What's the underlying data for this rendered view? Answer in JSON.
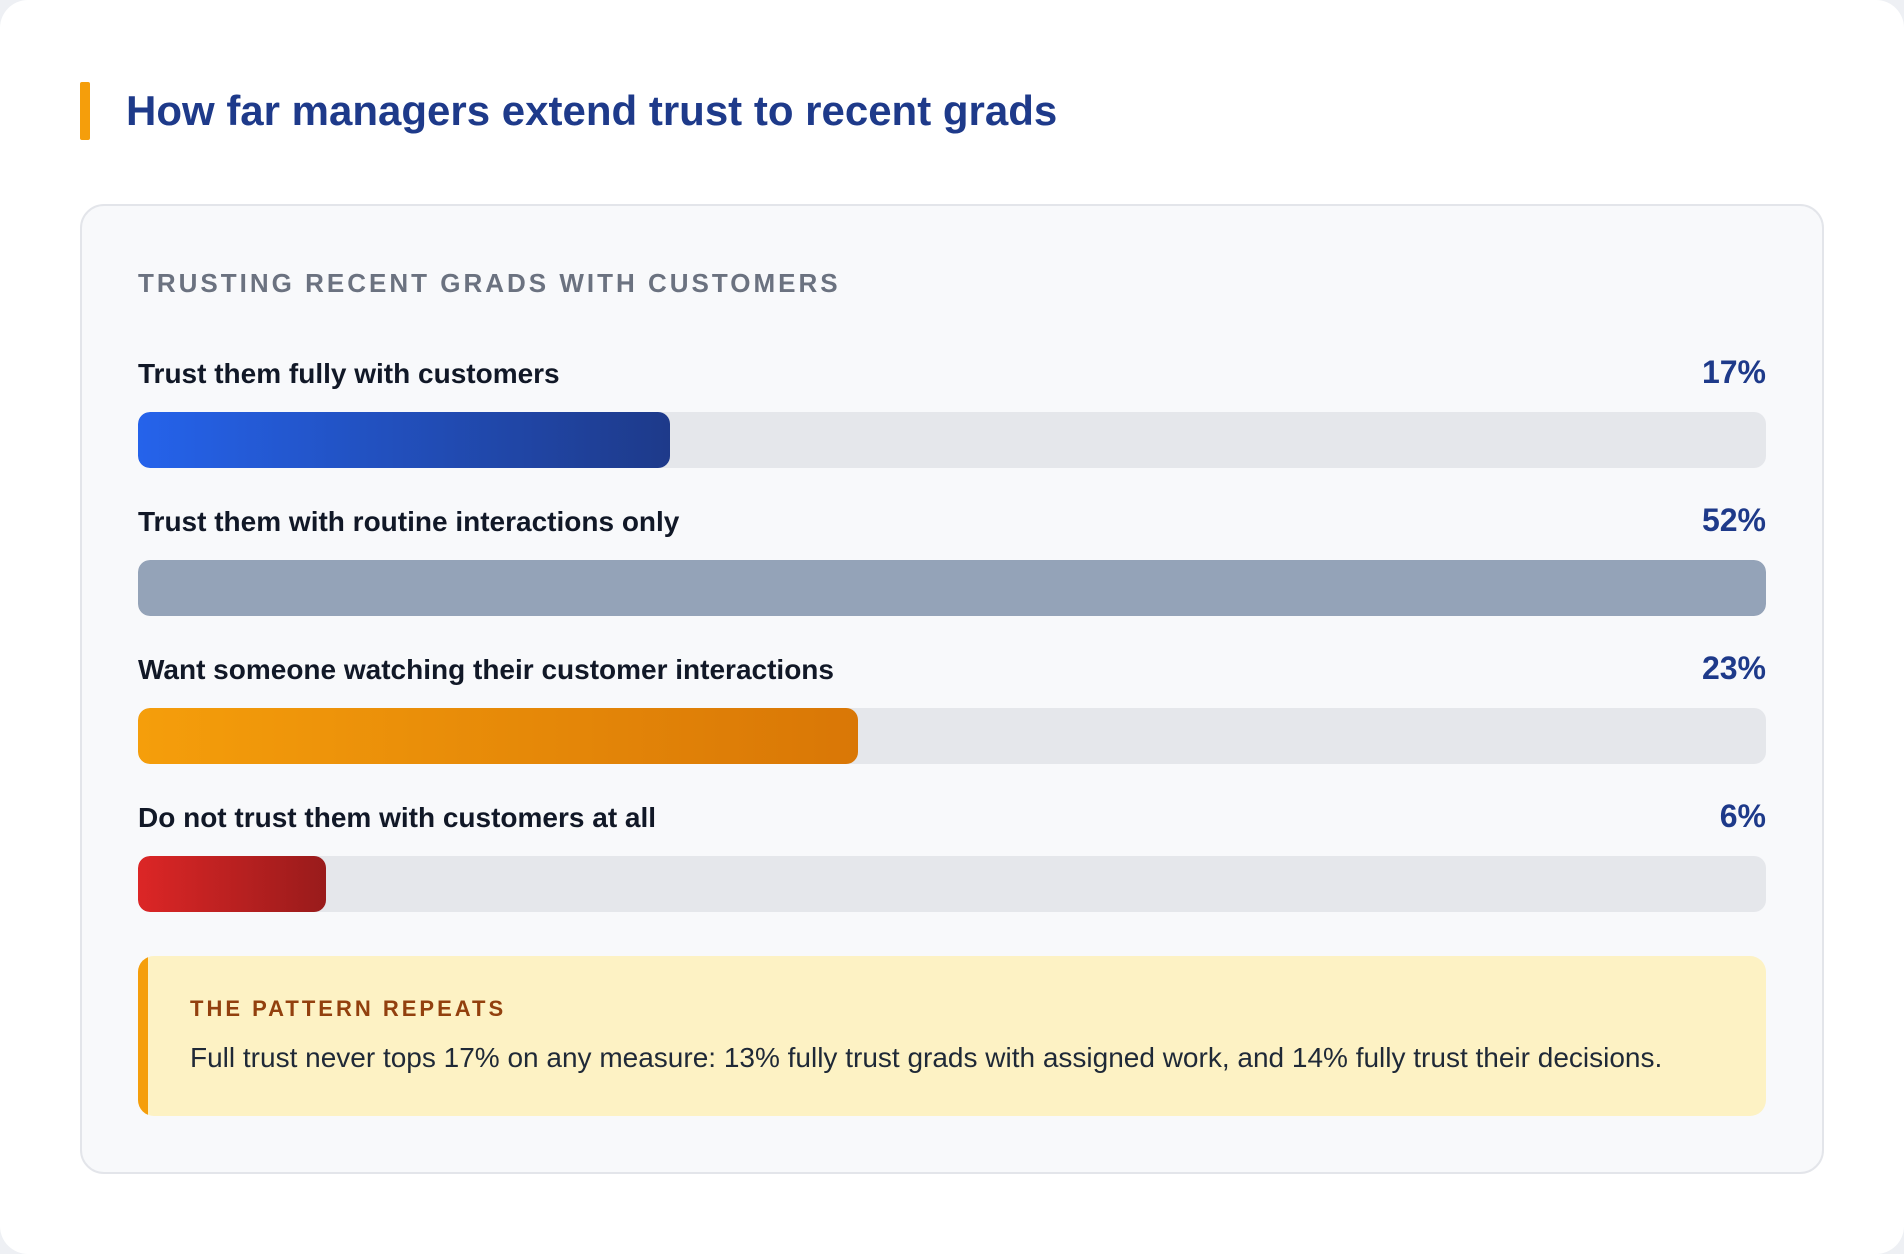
{
  "title": "How far managers extend trust to recent grads",
  "chart_data": {
    "type": "bar",
    "orientation": "horizontal",
    "title": "TRUSTING RECENT GRADS WITH CUSTOMERS",
    "categories": [
      "Trust them fully with customers",
      "Trust them with routine interactions only",
      "Want someone watching their customer interactions",
      "Do not trust them with customers at all"
    ],
    "values": [
      17,
      52,
      23,
      6
    ],
    "value_labels": [
      "17%",
      "52%",
      "23%",
      "6%"
    ],
    "unit": "%",
    "scale_max": 52,
    "bar_colors": [
      [
        "#2563eb",
        "#1e3a8a"
      ],
      [
        "#94a3b8",
        "#94a3b8"
      ],
      [
        "#f59e0b",
        "#d97706"
      ],
      [
        "#dc2626",
        "#991b1b"
      ]
    ],
    "track_color": "#e5e7eb"
  },
  "callout": {
    "title": "THE PATTERN REPEATS",
    "text": "Full trust never tops 17% on any measure: 13% fully trust grads with assigned work, and 14% fully trust their decisions."
  }
}
